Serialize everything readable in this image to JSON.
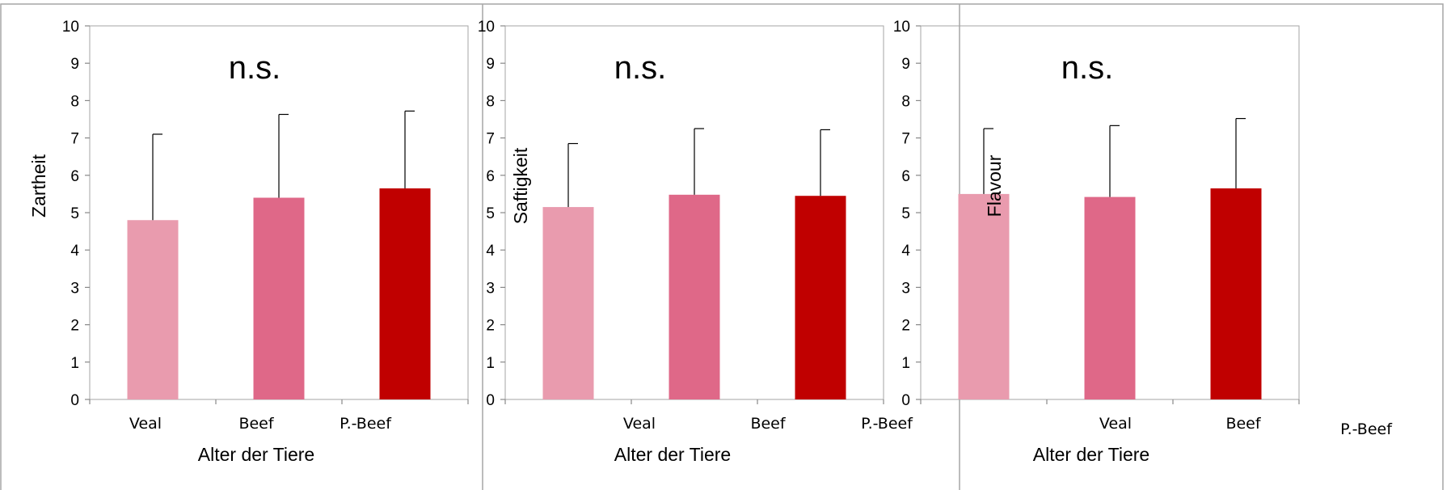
{
  "chart_data": [
    {
      "type": "bar",
      "categories": [
        "Veal",
        "Beef",
        "P.-Beef"
      ],
      "values": [
        4.8,
        5.4,
        5.65
      ],
      "error_upper": [
        7.1,
        7.63,
        7.72
      ],
      "xlabel": "Alter der Tiere",
      "ylabel": "Zartheit",
      "ylim": [
        0,
        10
      ],
      "yticks": [
        "0",
        "1",
        "2",
        "3",
        "4",
        "5",
        "6",
        "7",
        "8",
        "9",
        "10"
      ],
      "annotation": "n.s.",
      "colors": [
        "#e99bae",
        "#df6888",
        "#c00000"
      ],
      "grid": false
    },
    {
      "type": "bar",
      "categories": [
        "Veal",
        "Beef",
        "P.-Beef"
      ],
      "values": [
        5.15,
        5.48,
        5.45
      ],
      "error_upper": [
        6.85,
        7.25,
        7.22
      ],
      "xlabel": "Alter  der Tiere",
      "ylabel": "Saftigkeit",
      "ylim": [
        0,
        10
      ],
      "yticks": [
        "0",
        "1",
        "2",
        "3",
        "4",
        "5",
        "6",
        "7",
        "8",
        "9",
        "10"
      ],
      "annotation": "n.s.",
      "colors": [
        "#e99bae",
        "#df6888",
        "#c00000"
      ],
      "grid": false
    },
    {
      "type": "bar",
      "categories": [
        "Veal",
        "Beef",
        "P.-Beef"
      ],
      "values": [
        5.5,
        5.42,
        5.65
      ],
      "error_upper": [
        7.25,
        7.33,
        7.52
      ],
      "xlabel": "Alter  der Tiere",
      "ylabel": "Flavour",
      "ylim": [
        0,
        10
      ],
      "yticks": [
        "0",
        "1",
        "2",
        "3",
        "4",
        "5",
        "6",
        "7",
        "8",
        "9",
        "10"
      ],
      "annotation": "n.s.",
      "colors": [
        "#e99bae",
        "#df6888",
        "#c00000"
      ],
      "grid": false
    }
  ]
}
